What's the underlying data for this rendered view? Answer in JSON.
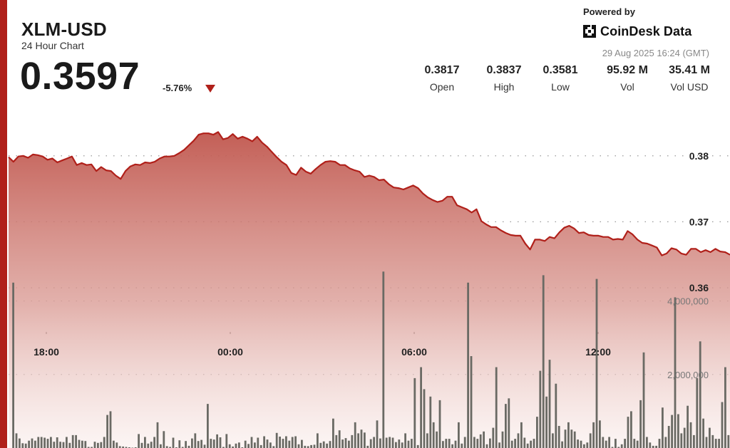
{
  "header": {
    "symbol": "XLM-USD",
    "subtitle": "24 Hour Chart",
    "price": "0.3597",
    "change": "-5.76%"
  },
  "branding": {
    "powered_by": "Powered by",
    "name": "CoinDesk Data",
    "timestamp": "29 Aug 2025 16:24 (GMT)"
  },
  "stats": [
    {
      "value": "0.3817",
      "label": "Open"
    },
    {
      "value": "0.3837",
      "label": "High"
    },
    {
      "value": "0.3581",
      "label": "Low"
    },
    {
      "value": "95.92 M",
      "label": "Vol"
    },
    {
      "value": "35.41 M",
      "label": "Vol USD"
    }
  ],
  "colors": {
    "accent": "#b0201a",
    "line": "#b0201a",
    "volume_bar": "#6a6a64"
  },
  "chart_data": {
    "type": "line",
    "title": "XLM-USD",
    "xlabel": "",
    "ylabel": "",
    "x_ticks": [
      "18:00",
      "00:00",
      "06:00",
      "12:00"
    ],
    "price_ticks": [
      0.38,
      0.37,
      0.36
    ],
    "price_ticks_labels": [
      "0.38",
      "0.37",
      "0.36"
    ],
    "price_ylim": [
      0.3545,
      0.3885
    ],
    "volume_ticks": [
      2000000,
      4000000
    ],
    "volume_ticks_labels": [
      "2,000,000",
      "4,000,000"
    ],
    "volume_ylim": [
      0,
      5600000
    ],
    "grid": true,
    "series": [
      {
        "values": [
          0.3798,
          0.3791,
          0.3799,
          0.38,
          0.3797,
          0.3802,
          0.3801,
          0.3799,
          0.3794,
          0.3796,
          0.379,
          0.3793,
          0.3796,
          0.3799,
          0.3786,
          0.3789,
          0.3786,
          0.3787,
          0.3777,
          0.3783,
          0.3778,
          0.3777,
          0.377,
          0.3765,
          0.3777,
          0.3784,
          0.3787,
          0.3786,
          0.379,
          0.3789,
          0.3791,
          0.3796,
          0.3799,
          0.3799,
          0.38,
          0.3804,
          0.3809,
          0.3816,
          0.3823,
          0.3832,
          0.3834,
          0.3834,
          0.3832,
          0.3836,
          0.3825,
          0.3827,
          0.3833,
          0.3826,
          0.3829,
          0.3826,
          0.3822,
          0.3829,
          0.382,
          0.3814,
          0.3806,
          0.3798,
          0.3791,
          0.3786,
          0.3774,
          0.3771,
          0.3782,
          0.3776,
          0.3773,
          0.378,
          0.3786,
          0.3791,
          0.3792,
          0.3791,
          0.3786,
          0.3786,
          0.3781,
          0.3778,
          0.3776,
          0.3768,
          0.377,
          0.3768,
          0.3763,
          0.3764,
          0.3757,
          0.3752,
          0.3751,
          0.3749,
          0.3752,
          0.3755,
          0.3751,
          0.3743,
          0.3737,
          0.3733,
          0.373,
          0.3732,
          0.3738,
          0.3738,
          0.3725,
          0.3722,
          0.3719,
          0.3714,
          0.3719,
          0.3701,
          0.3696,
          0.3692,
          0.3692,
          0.3687,
          0.3683,
          0.368,
          0.3679,
          0.3679,
          0.3667,
          0.3658,
          0.3673,
          0.3673,
          0.3671,
          0.3677,
          0.3675,
          0.3684,
          0.3691,
          0.3694,
          0.369,
          0.3683,
          0.3684,
          0.368,
          0.3679,
          0.3679,
          0.3677,
          0.3677,
          0.3673,
          0.3674,
          0.3673,
          0.3686,
          0.3681,
          0.3673,
          0.3668,
          0.3667,
          0.3664,
          0.3661,
          0.3649,
          0.3652,
          0.366,
          0.3658,
          0.3652,
          0.365,
          0.3659,
          0.3659,
          0.3654,
          0.3657,
          0.3654,
          0.3659,
          0.3655,
          0.3654,
          0.365
        ],
        "price_values_note": ""
      },
      {
        "volume_values": [
          0,
          4500000,
          400000,
          260000,
          130000,
          120000,
          200000,
          260000,
          200000,
          300000,
          300000,
          280000,
          250000,
          300000,
          170000,
          290000,
          170000,
          160000,
          300000,
          140000,
          350000,
          350000,
          220000,
          200000,
          190000,
          30000,
          30000,
          170000,
          140000,
          160000,
          300000,
          900000,
          1000000,
          200000,
          150000,
          50000,
          40000,
          30000,
          20000,
          10000,
          20000,
          380000,
          140000,
          300000,
          120000,
          170000,
          300000,
          700000,
          100000,
          460000,
          50000,
          30000,
          280000,
          20000,
          210000,
          30000,
          190000,
          60000,
          260000,
          400000,
          190000,
          220000,
          90000,
          1200000,
          250000,
          230000,
          370000,
          290000,
          30000,
          380000,
          100000,
          40000,
          120000,
          150000,
          20000,
          200000,
          110000,
          300000,
          150000,
          280000,
          80000,
          320000,
          230000,
          150000,
          50000,
          410000,
          310000,
          250000,
          320000,
          200000,
          300000,
          320000,
          100000,
          220000,
          60000,
          50000,
          80000,
          90000,
          400000,
          140000,
          180000,
          120000,
          190000,
          800000,
          350000,
          480000,
          230000,
          270000,
          200000,
          350000,
          700000,
          400000,
          500000,
          420000,
          60000,
          240000,
          300000,
          750000,
          260000,
          4800000,
          280000,
          300000,
          280000,
          160000,
          230000,
          150000,
          400000,
          200000,
          250000,
          1900000,
          80000,
          2200000,
          1600000,
          400000,
          1400000,
          700000,
          450000,
          1300000,
          190000,
          250000,
          250000,
          100000,
          200000,
          700000,
          120000,
          300000,
          4500000,
          2500000,
          300000,
          250000,
          370000,
          450000,
          100000,
          260000,
          550000,
          2200000,
          150000,
          450000,
          1200000,
          1350000,
          200000,
          250000,
          400000,
          700000,
          280000,
          120000,
          200000,
          250000,
          850000,
          2100000,
          4700000,
          1400000,
          2400000,
          400000,
          1750000,
          600000,
          180000,
          500000,
          700000,
          500000,
          450000,
          230000,
          200000,
          100000,
          150000,
          400000,
          700000,
          4600000,
          750000,
          300000,
          200000,
          300000,
          30000,
          250000,
          30000,
          100000,
          250000,
          850000,
          1000000,
          250000,
          200000,
          1300000,
          2600000,
          300000,
          150000,
          60000,
          60000,
          250000,
          1100000,
          300000,
          600000,
          900000,
          4100000,
          920000,
          400000,
          550000,
          1150000,
          700000,
          350000,
          1900000,
          2900000,
          800000,
          300000,
          550000,
          350000,
          250000,
          250000,
          1250000,
          2200000,
          350000
        ],
        "volume_values_note": ""
      }
    ]
  }
}
